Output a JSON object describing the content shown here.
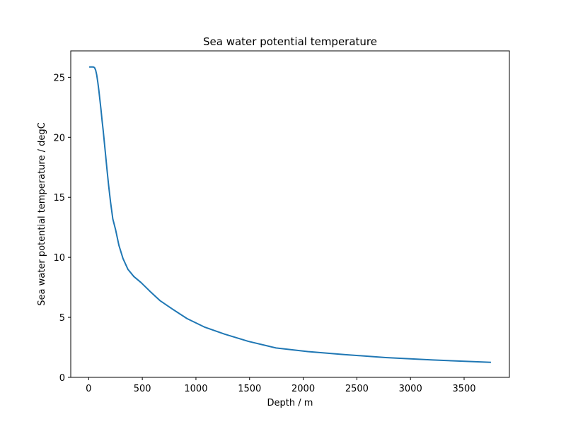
{
  "chart_data": {
    "type": "line",
    "title": "Sea water potential temperature",
    "xlabel": "Depth / m",
    "ylabel": "Sea water potential temperature / degC",
    "xlim": [
      -167,
      3922
    ],
    "ylim": [
      0,
      27.2
    ],
    "xticks": [
      0,
      500,
      1000,
      1500,
      2000,
      2500,
      3000,
      3500
    ],
    "yticks": [
      0,
      5,
      10,
      15,
      20,
      25
    ],
    "grid": false,
    "series": [
      {
        "color": "#1f77b4",
        "x": [
          5,
          15,
          25,
          35,
          45,
          55,
          65,
          75,
          85,
          95,
          105,
          115,
          125,
          135,
          146,
          158,
          171,
          186,
          204,
          225,
          251,
          282,
          320,
          366,
          421,
          488,
          568,
          664,
          779,
          916,
          1077,
          1267,
          1489,
          1746,
          2042,
          2382,
          2769,
          3208,
          3750
        ],
        "y": [
          25.85,
          25.86,
          25.86,
          25.86,
          25.85,
          25.8,
          25.6,
          25.2,
          24.6,
          23.9,
          23.1,
          22.3,
          21.4,
          20.6,
          19.6,
          18.5,
          17.3,
          16.0,
          14.6,
          13.2,
          12.3,
          11.0,
          9.9,
          9.0,
          8.4,
          7.9,
          7.2,
          6.4,
          5.7,
          4.9,
          4.2,
          3.6,
          3.0,
          2.45,
          2.15,
          1.9,
          1.65,
          1.45,
          1.25
        ]
      }
    ]
  }
}
